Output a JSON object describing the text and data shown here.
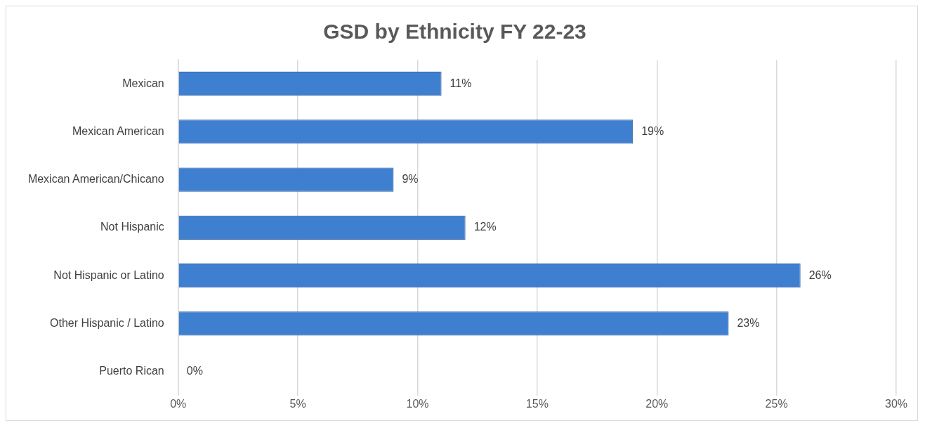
{
  "chart_data": {
    "type": "bar",
    "orientation": "horizontal",
    "title": "GSD by Ethnicity FY 22-23",
    "categories": [
      "Mexican",
      "Mexican American",
      "Mexican American/Chicano",
      "Not Hispanic",
      "Not Hispanic or Latino",
      "Other Hispanic / Latino",
      "Puerto Rican"
    ],
    "values": [
      11,
      19,
      9,
      12,
      26,
      23,
      0
    ],
    "color": "#3f7fcf",
    "value_labels": [
      "11%",
      "19%",
      "9%",
      "12%",
      "26%",
      "23%",
      "0%"
    ],
    "xlim": [
      0,
      30
    ],
    "xticks": [
      {
        "value": 0,
        "label": "0%"
      },
      {
        "value": 5,
        "label": "5%"
      },
      {
        "value": 10,
        "label": "10%"
      },
      {
        "value": 15,
        "label": "15%"
      },
      {
        "value": 20,
        "label": "20%"
      },
      {
        "value": 25,
        "label": "25%"
      },
      {
        "value": 30,
        "label": "30%"
      }
    ],
    "grid": "x",
    "legend": false
  }
}
